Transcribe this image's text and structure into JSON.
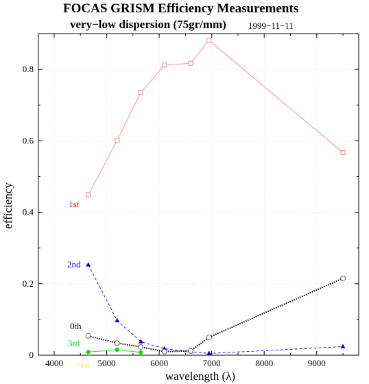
{
  "chart_data": {
    "type": "line",
    "title": "FOCAS GRISM Efficiency Measurements",
    "subtitle": "very−low dispersion (75gr/mm)",
    "date": "1999−11−11",
    "xlabel": "wavelength (λ)",
    "ylabel": "efficiency",
    "xlim": [
      3700,
      9800
    ],
    "ylim": [
      0,
      0.9
    ],
    "xticks": [
      4000,
      5000,
      6000,
      7000,
      8000,
      9000
    ],
    "xtick_labels": [
      "4000",
      "5000",
      "6000",
      "7000",
      "8000",
      "9000"
    ],
    "yticks": [
      0,
      0.2,
      0.4,
      0.6,
      0.8
    ],
    "ytick_labels": [
      "0",
      "0.2",
      "0.4",
      "0.6",
      "0.8"
    ],
    "grid": true,
    "series": [
      {
        "name": "1st",
        "color": "#ff8080",
        "label_color": "#ff0000",
        "marker": "open-square",
        "dash": "solid",
        "x": [
          4650,
          5200,
          5650,
          6100,
          6600,
          6950,
          9500
        ],
        "y": [
          0.449,
          0.601,
          0.735,
          0.812,
          0.817,
          0.881,
          0.567
        ]
      },
      {
        "name": "2nd",
        "color": "#0000ff",
        "label_color": "#0000ff",
        "marker": "filled-triangle",
        "dash": "dashed",
        "x": [
          4650,
          5200,
          5650,
          6100,
          6600,
          6950,
          9500
        ],
        "y": [
          0.253,
          0.097,
          0.038,
          0.018,
          0.01,
          0.005,
          0.024
        ]
      },
      {
        "name": "0th",
        "color": "#000000",
        "label_color": "#000000",
        "marker": "open-circle",
        "dash": "dotted",
        "x": [
          4650,
          5200,
          5650,
          6100,
          6600,
          6950,
          9500
        ],
        "y": [
          0.054,
          0.034,
          0.023,
          0.01,
          0.012,
          0.05,
          0.215
        ]
      },
      {
        "name": "3rd",
        "color": "#00dd00",
        "label_color": "#00dd00",
        "marker": "filled-circle",
        "dash": "solid",
        "x": [
          4650,
          5200,
          5650
        ],
        "y": [
          0.009,
          0.015,
          0.008
        ]
      },
      {
        "name": "−1st",
        "color": "#e8e800",
        "label_color": "#e8e800",
        "marker": "none",
        "dash": "solid",
        "x": [],
        "y": []
      }
    ]
  }
}
